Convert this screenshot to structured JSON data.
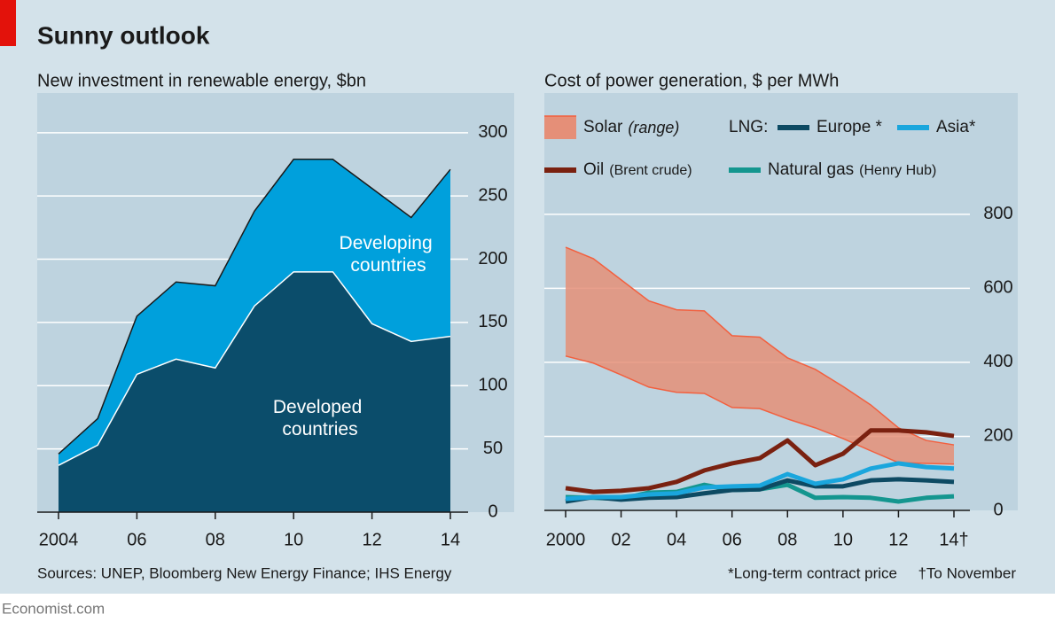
{
  "header": {
    "title": "Sunny outlook"
  },
  "footer": {
    "source": "Sources: UNEP, Bloomberg New Energy Finance; IHS Energy",
    "brand": "Economist.com"
  },
  "chart_data": [
    {
      "type": "area",
      "stacked": true,
      "title": "New investment in renewable energy, $bn",
      "x": [
        2004,
        2005,
        2006,
        2007,
        2008,
        2009,
        2010,
        2011,
        2012,
        2013,
        2014
      ],
      "xlim": [
        2004,
        2014
      ],
      "xticks": [
        2004,
        {
          "value": 2006,
          "label": "06"
        },
        {
          "value": 2008,
          "label": "08"
        },
        {
          "value": 2010,
          "label": "10"
        },
        {
          "value": 2012,
          "label": "12"
        },
        {
          "value": 2014,
          "label": "14"
        }
      ],
      "ylim": [
        0,
        330
      ],
      "yticks": [
        0,
        50,
        100,
        150,
        200,
        250,
        300
      ],
      "grid": true,
      "series": [
        {
          "name": "Developed countries",
          "color": "#0b4d6b",
          "values": [
            37,
            53,
            109,
            121,
            114,
            163,
            190,
            190,
            149,
            135,
            139
          ]
        },
        {
          "name": "Developing countries",
          "color": "#00a0dc",
          "values": [
            9,
            21,
            46,
            61,
            65,
            75,
            89,
            89,
            107,
            98,
            132
          ]
        }
      ]
    },
    {
      "type": "line",
      "title": "Cost of power generation, $ per MWh",
      "x": [
        2000,
        2001,
        2002,
        2003,
        2004,
        2005,
        2006,
        2007,
        2008,
        2009,
        2010,
        2011,
        2012,
        2013,
        2014
      ],
      "xlim": [
        2000,
        2014
      ],
      "xticks": [
        2000,
        {
          "value": 2002,
          "label": "02"
        },
        {
          "value": 2004,
          "label": "04"
        },
        {
          "value": 2006,
          "label": "06"
        },
        {
          "value": 2008,
          "label": "08"
        },
        {
          "value": 2010,
          "label": "10"
        },
        {
          "value": 2012,
          "label": "12"
        },
        {
          "value": 2014,
          "label": "14†"
        }
      ],
      "ylim": [
        0,
        1130
      ],
      "yticks": [
        0,
        200,
        400,
        600,
        800
      ],
      "grid": true,
      "legend_group": "LNG:",
      "notes": [
        "*Long-term contract price",
        "†To November"
      ],
      "series": [
        {
          "name": "Solar",
          "note": "(range)",
          "kind": "range",
          "color": "#e58f78",
          "edge_color": "#f2603f",
          "lower": [
            417,
            398,
            366,
            333,
            319,
            316,
            278,
            275,
            247,
            223,
            194,
            161,
            129,
            127,
            125
          ],
          "upper": [
            711,
            680,
            623,
            566,
            542,
            539,
            472,
            468,
            412,
            381,
            335,
            285,
            223,
            189,
            177
          ]
        },
        {
          "name": "Oil",
          "note": "(Brent crude)",
          "color": "#7a2110",
          "values": [
            60,
            50,
            53,
            60,
            77,
            108,
            127,
            141,
            189,
            122,
            153,
            216,
            216,
            211,
            201
          ]
        },
        {
          "name": "Europe *",
          "color": "#0d4a63",
          "values": [
            24,
            36,
            29,
            34,
            36,
            46,
            55,
            57,
            81,
            65,
            65,
            81,
            84,
            81,
            77
          ]
        },
        {
          "name": "Asia*",
          "color": "#1aa6dd",
          "values": [
            31,
            36,
            36,
            43,
            46,
            62,
            65,
            67,
            98,
            72,
            84,
            113,
            127,
            117,
            113
          ]
        },
        {
          "name": "Natural gas",
          "note": "(Henry Hub)",
          "color": "#14968f",
          "values": [
            36,
            34,
            31,
            48,
            50,
            69,
            55,
            57,
            69,
            34,
            36,
            34,
            24,
            34,
            38
          ]
        }
      ]
    }
  ]
}
